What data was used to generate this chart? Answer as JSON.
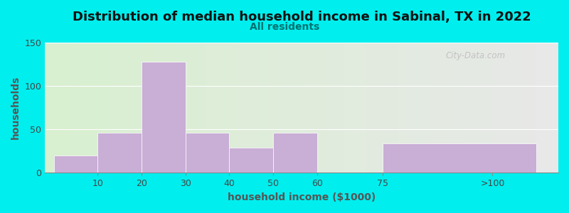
{
  "title": "Distribution of median household income in Sabinal, TX in 2022",
  "subtitle": "All residents",
  "xlabel": "household income ($1000)",
  "ylabel": "households",
  "background_color": "#00EEEE",
  "bar_color": "#c9aed6",
  "bar_edgecolor": "#c9aed6",
  "categories": [
    "10",
    "20",
    "30",
    "40",
    "50",
    "60",
    "75",
    ">100"
  ],
  "values": [
    20,
    46,
    128,
    46,
    29,
    46,
    0,
    34
  ],
  "ylim": [
    0,
    150
  ],
  "yticks": [
    0,
    50,
    100,
    150
  ],
  "title_fontsize": 13,
  "subtitle_fontsize": 10,
  "subtitle_color": "#007070",
  "axis_label_fontsize": 10,
  "tick_fontsize": 9,
  "tick_color": "#444444",
  "ylabel_color": "#555555",
  "xlabel_color": "#555555",
  "watermark": "City-Data.com",
  "grad_left": "#d8f0d0",
  "grad_right": "#e8e8e8"
}
